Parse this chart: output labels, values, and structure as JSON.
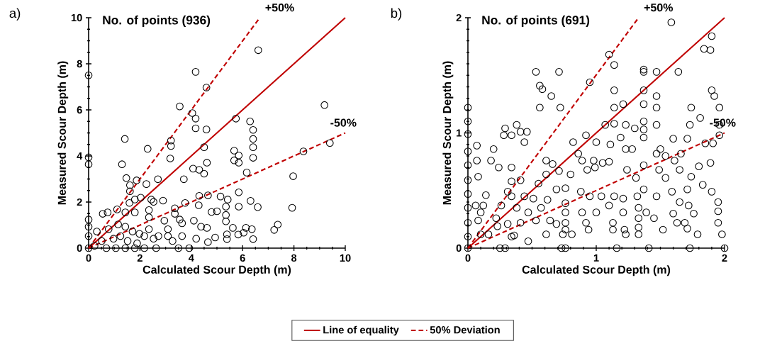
{
  "chart_data": [
    {
      "type": "scatter",
      "xlabel": "Calculated Scour Depth (m)",
      "ylabel": "Measured Scour Depth (m)",
      "annotations": [
        "a)",
        "No. of points (936)",
        {
          "text": "+50%",
          "x": 6.67,
          "y": 10
        },
        {
          "text": "-50%",
          "x": 10,
          "y": 5
        }
      ],
      "xlim": [
        0,
        10
      ],
      "ylim": [
        0,
        10
      ],
      "xticks": [
        0,
        2,
        4,
        6,
        8,
        10
      ],
      "yticks": [
        0,
        2,
        4,
        6,
        8,
        10
      ],
      "legend": "bottom",
      "series": [
        {
          "color": "#000000",
          "marker": "circle",
          "x": [
            6.61,
            0,
            4.17,
            4.59,
            3.55,
            9.19,
            4.04,
            4.17,
            5.74,
            4.17,
            4.59,
            6.29,
            6.41,
            6.41,
            6.41,
            6.41,
            1.41,
            3.21,
            3.21,
            2.3,
            3.18,
            9.4,
            8.37,
            0,
            0,
            1.3,
            4.5,
            4.61,
            4.07,
            4.31,
            4.5,
            5.67,
            5.85,
            5.67,
            5.85,
            6.16,
            7.97,
            3.71,
            2.7,
            1.47,
            1.87,
            2.25,
            1.61,
            1.61,
            4.65,
            5.14,
            5.85,
            5.42,
            6.31,
            6.59,
            5.85,
            7.93,
            4.31,
            3.76,
            2.9,
            1.59,
            4.29,
            3.36,
            4.79,
            5.0,
            5.35,
            5.35,
            5.35,
            7.37,
            7.23,
            5.62,
            6.13,
            6.36,
            5.83,
            6.04,
            6.41,
            5.39,
            5.39,
            4.93,
            4.38,
            4.61,
            3.92,
            3.5,
            2.95,
            3.64,
            4.1,
            0.55,
            0.74,
            1.11,
            1.8,
            2.03,
            2.44,
            2.53,
            1.8,
            1.43,
            2.35,
            2.35,
            0,
            0,
            0,
            0,
            0.32,
            0.78,
            1.15,
            1.43,
            1.71,
            1.98,
            2.17,
            2.35,
            2.53,
            2.72,
            0.97,
            0.51,
            0.23,
            0.69,
            1.06,
            1.43,
            1.8,
            2.17,
            2.63,
            1.24,
            1.52,
            1.89,
            3.09,
            3.27,
            3.64,
            4.19,
            4.65,
            3.36,
            3.55,
            3.09
          ],
          "values": [
            8.59,
            7.5,
            7.65,
            6.97,
            6.15,
            6.21,
            5.86,
            5.62,
            5.62,
            5.2,
            5.15,
            5.5,
            5.13,
            4.74,
            4.38,
            3.92,
            4.74,
            4.67,
            4.43,
            4.31,
            3.89,
            4.56,
            4.2,
            3.94,
            3.64,
            3.64,
            4.38,
            3.71,
            3.45,
            3.4,
            3.23,
            4.23,
            4.02,
            3.81,
            3.71,
            3.28,
            3.12,
            2.99,
            2.99,
            3.04,
            2.94,
            2.78,
            2.73,
            2.47,
            2.29,
            2.24,
            2.42,
            2.11,
            2.05,
            1.78,
            1.8,
            1.75,
            2.27,
            1.96,
            2.06,
            1.96,
            1.86,
            1.73,
            1.57,
            1.6,
            1.8,
            1.44,
            1.16,
            1.02,
            0.79,
            0.88,
            0.88,
            0.82,
            0.59,
            0.67,
            0.39,
            0.39,
            0.6,
            0.46,
            0.93,
            0.88,
            0,
            0,
            1.19,
            1.08,
            1.19,
            1.49,
            1.55,
            1.68,
            2.11,
            2.19,
            2.11,
            2.01,
            1.55,
            1.55,
            1.65,
            1.34,
            1.24,
            0.93,
            0.52,
            0,
            0.72,
            0.82,
            1.03,
            0.93,
            0.72,
            0.62,
            0.52,
            0.82,
            0.41,
            0.52,
            0.41,
            0.31,
            0.1,
            0,
            0,
            0,
            0,
            0,
            0,
            0.52,
            0.31,
            0.21,
            0.52,
            0.31,
            0.52,
            0.41,
            0.26,
            1.49,
            1.24,
            0.82
          ]
        },
        {
          "type": "line",
          "name": "Line of equality",
          "color": "#c00000",
          "line_style": "solid",
          "x": [
            0,
            10
          ],
          "values": [
            0,
            10
          ]
        },
        {
          "type": "line",
          "name": "50% Deviation",
          "color": "#c00000",
          "line_style": "dashed",
          "x": [
            0,
            6.67
          ],
          "values": [
            0,
            10
          ]
        },
        {
          "type": "line",
          "color": "#c00000",
          "line_style": "dashed",
          "x": [
            0,
            10
          ],
          "values": [
            0,
            5
          ]
        }
      ]
    },
    {
      "type": "scatter",
      "xlabel": "Calculated Scour Depth (m)",
      "ylabel": "Measured Scour Depth (m)",
      "annotations": [
        "b)",
        "No. of points (691)",
        {
          "text": "+50%",
          "x": 1.33,
          "y": 2
        },
        {
          "text": "-50%",
          "x": 2,
          "y": 1
        }
      ],
      "xlim": [
        0,
        2
      ],
      "ylim": [
        0,
        2
      ],
      "xticks": [
        0,
        1,
        2
      ],
      "yticks": [
        0,
        1,
        2
      ],
      "series": [
        {
          "color": "#000000",
          "marker": "circle",
          "x": [
            1.585,
            1.9,
            1.84,
            1.89,
            1.1,
            1.14,
            0.53,
            0.71,
            1.37,
            1.37,
            1.47,
            1.64,
            0.95,
            0.56,
            0.58,
            0.65,
            1.14,
            1.37,
            1.9,
            1.92,
            1.47,
            1.37,
            1.21,
            1.14,
            0.56,
            0.72,
            1.47,
            1.74,
            1.96,
            1.81,
            0,
            0,
            0,
            0,
            0,
            0,
            0,
            0,
            0,
            0,
            0,
            1.07,
            1.14,
            1.23,
            1.37,
            1.37,
            1.37,
            1.47,
            1.73,
            1.96,
            1.96,
            1.71,
            1.6,
            1.85,
            1.91,
            0.38,
            0.29,
            0.28,
            0.34,
            0.41,
            0.46,
            0.44,
            0.92,
            0.82,
            1.0,
            1.11,
            1.19,
            1.3,
            0.07,
            0.2,
            0.07,
            0.18,
            0.24,
            0.34,
            0.61,
            0.66,
            0.86,
            0.89,
            0.98,
            1.1,
            1.23,
            1.28,
            1.5,
            1.47,
            1.54,
            1.66,
            1.61,
            1.8,
            1.89,
            0.08,
            0.34,
            0.41,
            0.55,
            0.61,
            0.71,
            0.8,
            0.93,
            0.99,
            1.05,
            1.24,
            1.31,
            1.37,
            1.49,
            1.54,
            1.65,
            1.74,
            1.83,
            1.9,
            0.14,
            0.06,
            0.12,
            0.31,
            0.34,
            0.44,
            0.51,
            0.62,
            0.69,
            0.76,
            0.88,
            0.95,
            1.04,
            1.14,
            1.21,
            1.32,
            1.37,
            1.47,
            1.59,
            1.71,
            1.95,
            1.65,
            1.72,
            0.1,
            0.26,
            0.38,
            0.47,
            0.57,
            0.76,
            0.76,
            0.76,
            0.76,
            0.89,
            0.92,
            1.0,
            1.1,
            1.21,
            1.33,
            1.33,
            1.33,
            1.33,
            1.39,
            1.45,
            1.6,
            1.63,
            1.69,
            1.76,
            1.95,
            1.95,
            1.98,
            0.08,
            0.22,
            0.31,
            0.41,
            0.53,
            0.64,
            0.69,
            1.13,
            1.13,
            1.22,
            1.23,
            1.52,
            1.71,
            1.79,
            0.1,
            0.16,
            0.23,
            0.34,
            0.36,
            0.47,
            0.61,
            0.74,
            0.81,
            0.94,
            0.25,
            0.29,
            0.73,
            0.76,
            1.16,
            1.41,
            1.73,
            2.0
          ],
          "values": [
            1.96,
            1.84,
            1.73,
            1.72,
            1.68,
            1.59,
            1.53,
            1.53,
            1.55,
            1.53,
            1.53,
            1.53,
            1.44,
            1.41,
            1.38,
            1.32,
            1.37,
            1.37,
            1.37,
            1.32,
            1.32,
            1.25,
            1.25,
            1.22,
            1.22,
            1.22,
            1.22,
            1.22,
            1.22,
            1.13,
            1.22,
            1.1,
            0.99,
            0.84,
            0.72,
            0.59,
            0.47,
            0.35,
            0.22,
            0.1,
            0,
            1.07,
            1.08,
            1.07,
            1.1,
            1.03,
            0.96,
            1.07,
            1.07,
            1.07,
            0.98,
            0.95,
            0.95,
            0.91,
            0.91,
            1.07,
            1.04,
            0.98,
            0.98,
            1.01,
            1.01,
            0.92,
            0.98,
            0.92,
            0.92,
            0.9,
            0.96,
            1.04,
            0.89,
            0.86,
            0.76,
            0.76,
            0.7,
            0.7,
            0.76,
            0.73,
            0.82,
            0.76,
            0.76,
            0.75,
            0.86,
            0.86,
            0.86,
            0.82,
            0.8,
            0.82,
            0.76,
            0.71,
            0.74,
            0.62,
            0.58,
            0.59,
            0.56,
            0.64,
            0.67,
            0.64,
            0.68,
            0.7,
            0.74,
            0.68,
            0.61,
            0.72,
            0.68,
            0.61,
            0.68,
            0.62,
            0.55,
            0.49,
            0.46,
            0.37,
            0.37,
            0.49,
            0.45,
            0.45,
            0.43,
            0.42,
            0.51,
            0.52,
            0.49,
            0.45,
            0.45,
            0.45,
            0.43,
            0.45,
            0.51,
            0.45,
            0.49,
            0.51,
            0.4,
            0.4,
            0.37,
            0.31,
            0.37,
            0.35,
            0.31,
            0.35,
            0.39,
            0.31,
            0.22,
            0.16,
            0.31,
            0.22,
            0.31,
            0.37,
            0.31,
            0.35,
            0.26,
            0.18,
            0.12,
            0.31,
            0.26,
            0.3,
            0.22,
            0.22,
            0.3,
            0.32,
            0.22,
            0.12,
            0.24,
            0.26,
            0.21,
            0.22,
            0.24,
            0.24,
            0.21,
            0.22,
            0.16,
            0.16,
            0.12,
            0.16,
            0.17,
            0.12,
            0.12,
            0.12,
            0.19,
            0.1,
            0.11,
            0.06,
            0.12,
            0.12,
            0.12,
            0.16,
            0,
            0,
            0,
            0,
            0,
            0,
            0,
            0
          ]
        },
        {
          "type": "line",
          "color": "#c00000",
          "line_style": "solid",
          "x": [
            0,
            2
          ],
          "values": [
            0,
            2
          ]
        },
        {
          "type": "line",
          "color": "#c00000",
          "line_style": "dashed",
          "x": [
            0,
            1.33
          ],
          "values": [
            0,
            2
          ]
        },
        {
          "type": "line",
          "color": "#c00000",
          "line_style": "dashed",
          "x": [
            0,
            2
          ],
          "values": [
            0,
            1
          ]
        }
      ]
    }
  ]
}
